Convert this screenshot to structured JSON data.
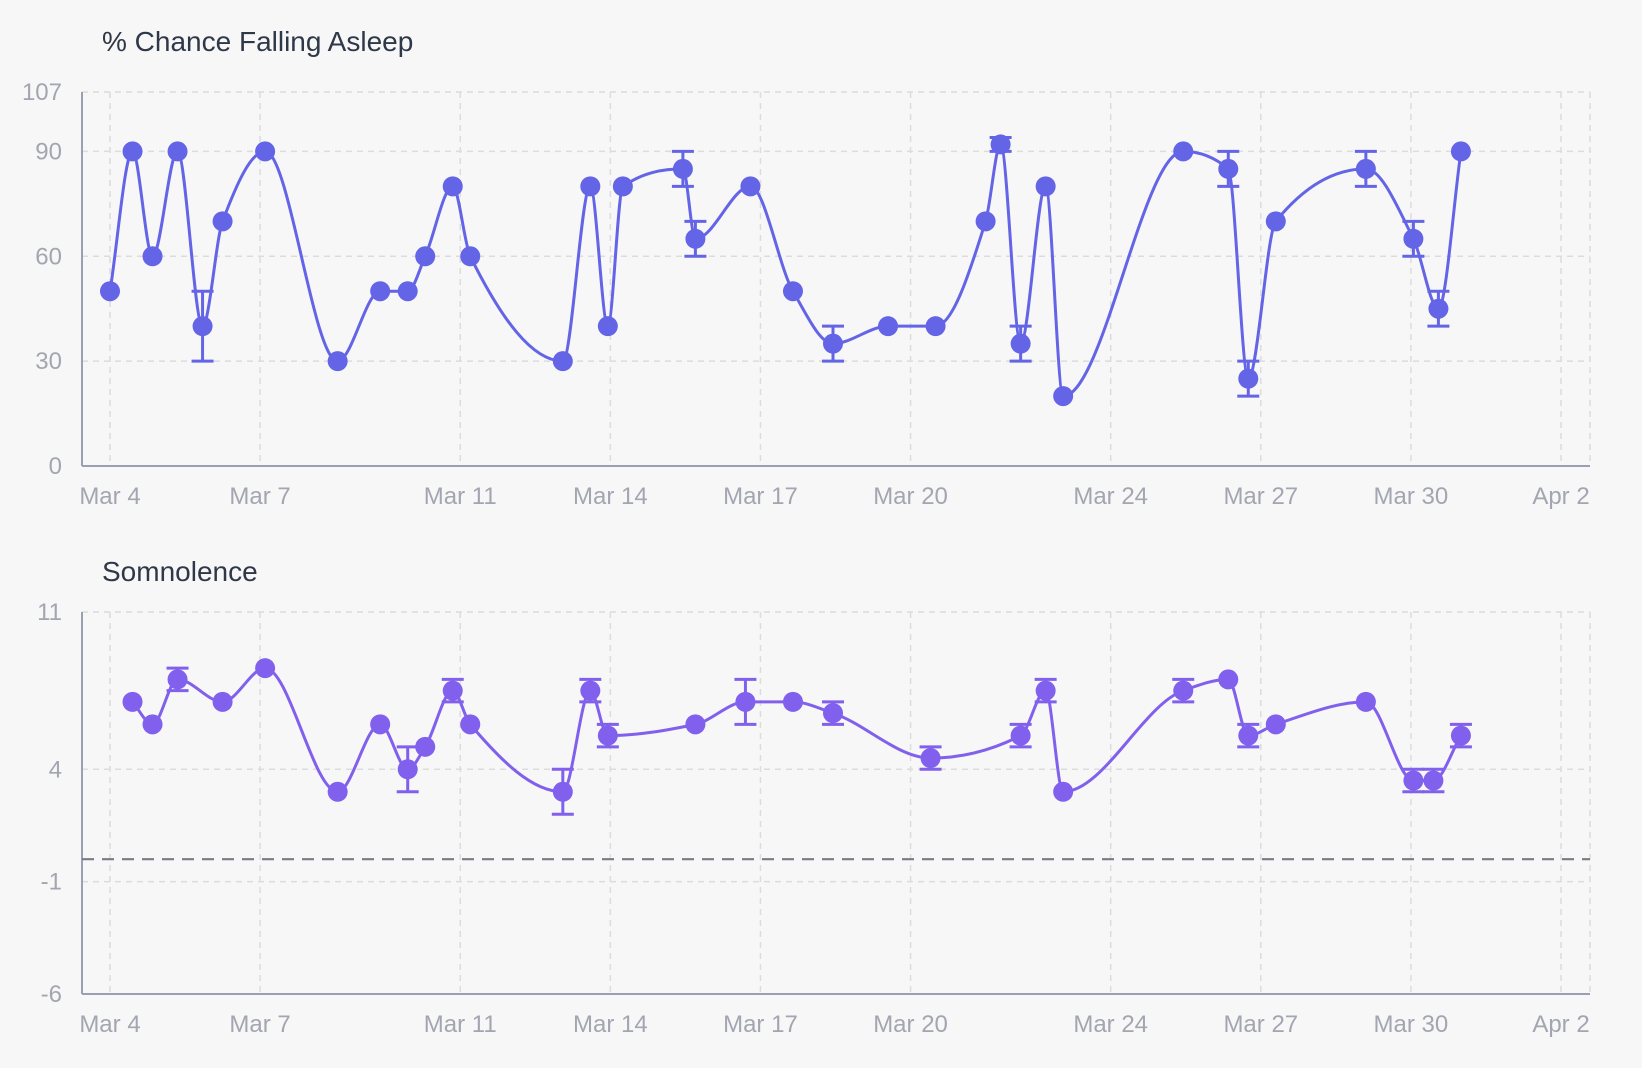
{
  "chart_data": [
    {
      "type": "line",
      "title": "% Chance Falling Asleep",
      "color": "#6464e6",
      "ylim": [
        0,
        107
      ],
      "yticks": [
        0,
        30,
        60,
        90,
        107
      ],
      "xlim": [
        "2024-03-04",
        "2024-04-02"
      ],
      "xticks": [
        {
          "date": "2024-03-04",
          "label": "Mar 4"
        },
        {
          "date": "2024-03-07",
          "label": "Mar 7"
        },
        {
          "date": "2024-03-11",
          "label": "Mar 11"
        },
        {
          "date": "2024-03-14",
          "label": "Mar 14"
        },
        {
          "date": "2024-03-17",
          "label": "Mar 17"
        },
        {
          "date": "2024-03-20",
          "label": "Mar 20"
        },
        {
          "date": "2024-03-24",
          "label": "Mar 24"
        },
        {
          "date": "2024-03-27",
          "label": "Mar 27"
        },
        {
          "date": "2024-03-30",
          "label": "Mar 30"
        },
        {
          "date": "2024-04-02",
          "label": "Apr 2"
        }
      ],
      "points": [
        {
          "x": 0.0,
          "y": 50,
          "lo": 50,
          "hi": 50
        },
        {
          "x": 0.45,
          "y": 90,
          "lo": 90,
          "hi": 90
        },
        {
          "x": 0.85,
          "y": 60,
          "lo": 60,
          "hi": 60
        },
        {
          "x": 1.35,
          "y": 90,
          "lo": 90,
          "hi": 90
        },
        {
          "x": 1.85,
          "y": 40,
          "lo": 30,
          "hi": 50
        },
        {
          "x": 2.25,
          "y": 70,
          "lo": 70,
          "hi": 70
        },
        {
          "x": 3.1,
          "y": 90,
          "lo": 90,
          "hi": 90
        },
        {
          "x": 4.55,
          "y": 30,
          "lo": 30,
          "hi": 30
        },
        {
          "x": 5.4,
          "y": 50,
          "lo": 50,
          "hi": 50
        },
        {
          "x": 5.95,
          "y": 50,
          "lo": 50,
          "hi": 50
        },
        {
          "x": 6.3,
          "y": 60,
          "lo": 60,
          "hi": 60
        },
        {
          "x": 6.85,
          "y": 80,
          "lo": 80,
          "hi": 80
        },
        {
          "x": 7.2,
          "y": 60,
          "lo": 60,
          "hi": 60
        },
        {
          "x": 9.05,
          "y": 30,
          "lo": 30,
          "hi": 30
        },
        {
          "x": 9.6,
          "y": 80,
          "lo": 80,
          "hi": 80
        },
        {
          "x": 9.95,
          "y": 40,
          "lo": 40,
          "hi": 40
        },
        {
          "x": 10.25,
          "y": 80,
          "lo": 80,
          "hi": 80
        },
        {
          "x": 11.45,
          "y": 85,
          "lo": 80,
          "hi": 90
        },
        {
          "x": 11.7,
          "y": 65,
          "lo": 60,
          "hi": 70
        },
        {
          "x": 12.8,
          "y": 80,
          "lo": 80,
          "hi": 80
        },
        {
          "x": 13.65,
          "y": 50,
          "lo": 50,
          "hi": 50
        },
        {
          "x": 14.45,
          "y": 35,
          "lo": 30,
          "hi": 40
        },
        {
          "x": 15.55,
          "y": 40,
          "lo": 40,
          "hi": 40
        },
        {
          "x": 16.5,
          "y": 40,
          "lo": 40,
          "hi": 40
        },
        {
          "x": 17.5,
          "y": 70,
          "lo": 70,
          "hi": 70
        },
        {
          "x": 17.8,
          "y": 92,
          "lo": 90,
          "hi": 94
        },
        {
          "x": 18.2,
          "y": 35,
          "lo": 30,
          "hi": 40
        },
        {
          "x": 18.7,
          "y": 80,
          "lo": 80,
          "hi": 80
        },
        {
          "x": 19.05,
          "y": 20,
          "lo": 20,
          "hi": 20
        },
        {
          "x": 21.45,
          "y": 90,
          "lo": 90,
          "hi": 90
        },
        {
          "x": 22.35,
          "y": 85,
          "lo": 80,
          "hi": 90
        },
        {
          "x": 22.75,
          "y": 25,
          "lo": 20,
          "hi": 30
        },
        {
          "x": 23.3,
          "y": 70,
          "lo": 70,
          "hi": 70
        },
        {
          "x": 25.1,
          "y": 85,
          "lo": 80,
          "hi": 90
        },
        {
          "x": 26.05,
          "y": 65,
          "lo": 60,
          "hi": 70
        },
        {
          "x": 26.55,
          "y": 45,
          "lo": 40,
          "hi": 50
        },
        {
          "x": 27.0,
          "y": 90,
          "lo": 90,
          "hi": 90
        }
      ]
    },
    {
      "type": "line",
      "title": "Somnolence",
      "color": "#8060ec",
      "ylim": [
        -6,
        11
      ],
      "yticks": [
        -6,
        -1,
        4,
        11
      ],
      "reference_line": 0,
      "xlim": [
        "2024-03-04",
        "2024-04-02"
      ],
      "xticks": [
        {
          "date": "2024-03-04",
          "label": "Mar 4"
        },
        {
          "date": "2024-03-07",
          "label": "Mar 7"
        },
        {
          "date": "2024-03-11",
          "label": "Mar 11"
        },
        {
          "date": "2024-03-14",
          "label": "Mar 14"
        },
        {
          "date": "2024-03-17",
          "label": "Mar 17"
        },
        {
          "date": "2024-03-20",
          "label": "Mar 20"
        },
        {
          "date": "2024-03-24",
          "label": "Mar 24"
        },
        {
          "date": "2024-03-27",
          "label": "Mar 27"
        },
        {
          "date": "2024-03-30",
          "label": "Mar 30"
        },
        {
          "date": "2024-04-02",
          "label": "Apr 2"
        }
      ],
      "points": [
        {
          "x": 0.45,
          "y": 7,
          "lo": 7,
          "hi": 7
        },
        {
          "x": 0.85,
          "y": 6,
          "lo": 6,
          "hi": 6
        },
        {
          "x": 1.35,
          "y": 8,
          "lo": 7.5,
          "hi": 8.5
        },
        {
          "x": 2.25,
          "y": 7,
          "lo": 7,
          "hi": 7
        },
        {
          "x": 3.1,
          "y": 8.5,
          "lo": 8.5,
          "hi": 8.5
        },
        {
          "x": 4.55,
          "y": 3,
          "lo": 3,
          "hi": 3
        },
        {
          "x": 5.4,
          "y": 6,
          "lo": 6,
          "hi": 6
        },
        {
          "x": 5.95,
          "y": 4,
          "lo": 3,
          "hi": 5
        },
        {
          "x": 6.3,
          "y": 5,
          "lo": 5,
          "hi": 5
        },
        {
          "x": 6.85,
          "y": 7.5,
          "lo": 7,
          "hi": 8
        },
        {
          "x": 7.2,
          "y": 6,
          "lo": 6,
          "hi": 6
        },
        {
          "x": 9.05,
          "y": 3,
          "lo": 2,
          "hi": 4
        },
        {
          "x": 9.6,
          "y": 7.5,
          "lo": 7,
          "hi": 8
        },
        {
          "x": 9.95,
          "y": 5.5,
          "lo": 5,
          "hi": 6
        },
        {
          "x": 11.7,
          "y": 6,
          "lo": 6,
          "hi": 6
        },
        {
          "x": 12.7,
          "y": 7,
          "lo": 6,
          "hi": 8
        },
        {
          "x": 13.65,
          "y": 7,
          "lo": 7,
          "hi": 7
        },
        {
          "x": 14.45,
          "y": 6.5,
          "lo": 6,
          "hi": 7
        },
        {
          "x": 16.4,
          "y": 4.5,
          "lo": 4,
          "hi": 5
        },
        {
          "x": 18.2,
          "y": 5.5,
          "lo": 5,
          "hi": 6
        },
        {
          "x": 18.7,
          "y": 7.5,
          "lo": 7,
          "hi": 8
        },
        {
          "x": 19.05,
          "y": 3,
          "lo": 3,
          "hi": 3
        },
        {
          "x": 21.45,
          "y": 7.5,
          "lo": 7,
          "hi": 8
        },
        {
          "x": 22.35,
          "y": 8,
          "lo": 8,
          "hi": 8
        },
        {
          "x": 22.75,
          "y": 5.5,
          "lo": 5,
          "hi": 6
        },
        {
          "x": 23.3,
          "y": 6,
          "lo": 6,
          "hi": 6
        },
        {
          "x": 25.1,
          "y": 7,
          "lo": 7,
          "hi": 7
        },
        {
          "x": 26.05,
          "y": 3.5,
          "lo": 3,
          "hi": 4
        },
        {
          "x": 26.45,
          "y": 3.5,
          "lo": 3,
          "hi": 4
        },
        {
          "x": 27.0,
          "y": 5.5,
          "lo": 5,
          "hi": 6
        }
      ]
    }
  ]
}
